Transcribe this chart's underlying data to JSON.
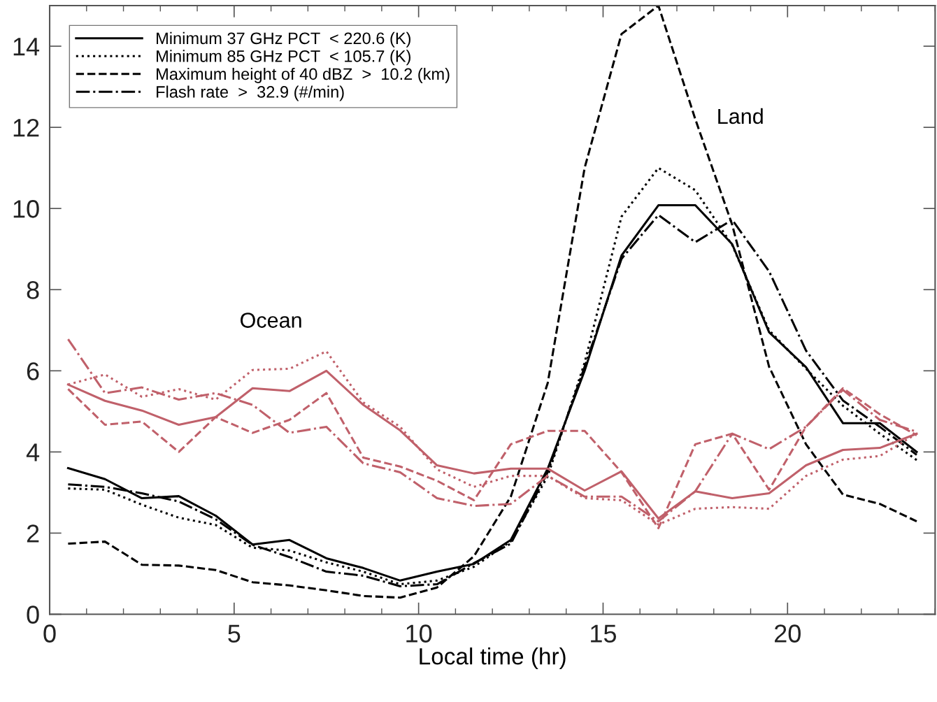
{
  "chart_data": {
    "type": "line",
    "xlabel": "Local time (hr)",
    "x": [
      0.5,
      1.5,
      2.5,
      3.5,
      4.5,
      5.5,
      6.5,
      7.5,
      8.5,
      9.5,
      10.5,
      11.5,
      12.5,
      13.5,
      14.5,
      15.5,
      16.5,
      17.5,
      18.5,
      19.5,
      20.5,
      21.5,
      22.5,
      23.5
    ],
    "xlim": [
      0,
      24
    ],
    "xticks": [
      0,
      5,
      10,
      15,
      20
    ],
    "ylim": [
      0,
      15
    ],
    "yticks": [
      0,
      2,
      4,
      6,
      8,
      10,
      12,
      14
    ],
    "grid": false,
    "legend": "top left",
    "marker": "none",
    "series": [
      {
        "name": "Minimum 37 GHz PCT  < 220.6 (K)",
        "color": "#000000",
        "line_style": "solid",
        "values": [
          3.6,
          3.33,
          2.86,
          2.91,
          2.43,
          1.72,
          1.83,
          1.38,
          1.14,
          0.83,
          1.05,
          1.24,
          1.83,
          3.59,
          6.0,
          8.84,
          10.08,
          10.08,
          9.12,
          6.95,
          6.09,
          4.71,
          4.71,
          4.0
        ]
      },
      {
        "name": "Minimum 85 GHz PCT  < 105.7 (K)",
        "color": "#000000",
        "line_style": "dotted",
        "values": [
          3.1,
          3.07,
          2.7,
          2.38,
          2.2,
          1.64,
          1.57,
          1.28,
          1.05,
          0.74,
          0.83,
          1.17,
          1.8,
          3.4,
          6.2,
          9.8,
          11.0,
          10.45,
          9.1,
          7.0,
          6.05,
          5.14,
          4.45,
          3.8
        ]
      },
      {
        "name": "Maximum height of 40 dBZ  >  10.2 (km)",
        "color": "#000000",
        "line_style": "dashed",
        "values": [
          1.74,
          1.79,
          1.22,
          1.2,
          1.09,
          0.79,
          0.71,
          0.59,
          0.45,
          0.41,
          0.66,
          1.43,
          2.9,
          5.7,
          11.0,
          14.3,
          15.0,
          12.2,
          9.6,
          6.1,
          4.19,
          2.95,
          2.72,
          2.29
        ]
      },
      {
        "name": "Flash rate  >  32.9 (#/min)",
        "color": "#000000",
        "line_style": "dashdot",
        "values": [
          3.2,
          3.14,
          2.98,
          2.78,
          2.34,
          1.71,
          1.41,
          1.05,
          0.95,
          0.69,
          0.74,
          1.26,
          1.74,
          3.5,
          6.1,
          8.76,
          9.84,
          9.17,
          9.72,
          8.45,
          6.5,
          5.27,
          4.62,
          3.93
        ]
      },
      {
        "color": "#c0606a",
        "line_style": "solid",
        "values": [
          5.66,
          5.26,
          5.02,
          4.67,
          4.86,
          5.57,
          5.5,
          6.0,
          5.16,
          4.53,
          3.67,
          3.47,
          3.59,
          3.59,
          3.05,
          3.52,
          2.36,
          3.03,
          2.86,
          2.98,
          3.67,
          4.05,
          4.1,
          4.45
        ]
      },
      {
        "color": "#c0606a",
        "line_style": "dotted",
        "values": [
          5.66,
          5.91,
          5.36,
          5.55,
          5.29,
          6.02,
          6.05,
          6.48,
          5.22,
          4.62,
          3.57,
          3.14,
          3.41,
          3.41,
          2.86,
          2.81,
          2.21,
          2.6,
          2.64,
          2.6,
          3.41,
          3.81,
          3.9,
          4.45
        ]
      },
      {
        "color": "#c0606a",
        "line_style": "dashed",
        "values": [
          5.55,
          4.67,
          4.75,
          4.0,
          4.86,
          4.47,
          4.79,
          5.45,
          3.86,
          3.64,
          3.29,
          2.81,
          4.19,
          4.52,
          4.52,
          3.5,
          2.12,
          4.19,
          4.45,
          3.07,
          4.62,
          5.57,
          4.93,
          4.41
        ]
      },
      {
        "color": "#c0606a",
        "line_style": "dashdot",
        "values": [
          6.78,
          5.45,
          5.59,
          5.29,
          5.45,
          5.16,
          4.47,
          4.62,
          3.72,
          3.5,
          2.86,
          2.67,
          2.72,
          3.41,
          2.9,
          2.9,
          2.29,
          3.03,
          4.45,
          4.07,
          4.62,
          5.53,
          4.79,
          4.5
        ]
      }
    ],
    "annotations": [
      "Ocean",
      "Land"
    ]
  }
}
